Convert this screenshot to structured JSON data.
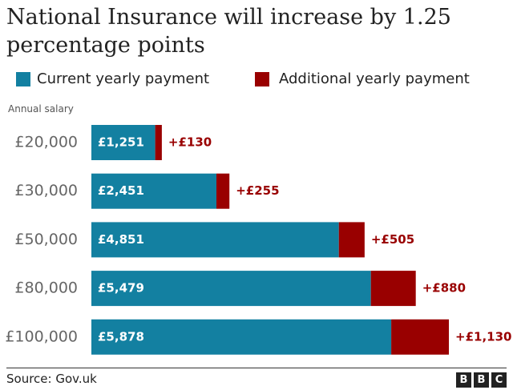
{
  "colors": {
    "current": "#1380A1",
    "additional": "#990000",
    "text": "#222222",
    "tick": "#666666"
  },
  "legend": {
    "current_label": "Current yearly payment",
    "additional_label": "Additional yearly payment"
  },
  "footer": {
    "source": "Source: Gov.uk",
    "logo_letters": [
      "B",
      "B",
      "C"
    ]
  },
  "chart_data": {
    "type": "bar",
    "orientation": "horizontal",
    "stacked": true,
    "title": "National Insurance will increase by 1.25 percentage points",
    "ylabel": "Annual salary",
    "categories": [
      "£20,000",
      "£30,000",
      "£50,000",
      "£80,000",
      "£100,000"
    ],
    "series": [
      {
        "name": "Current yearly payment",
        "values": [
          1251,
          2451,
          4851,
          5479,
          5878
        ],
        "labels": [
          "£1,251",
          "£2,451",
          "£4,851",
          "£5,479",
          "£5,878"
        ]
      },
      {
        "name": "Additional yearly payment",
        "values": [
          130,
          255,
          505,
          880,
          1130
        ],
        "labels": [
          "+£130",
          "+£255",
          "+£505",
          "+£880",
          "+£1,130"
        ]
      }
    ],
    "xlim": [
      0,
      7008
    ]
  }
}
